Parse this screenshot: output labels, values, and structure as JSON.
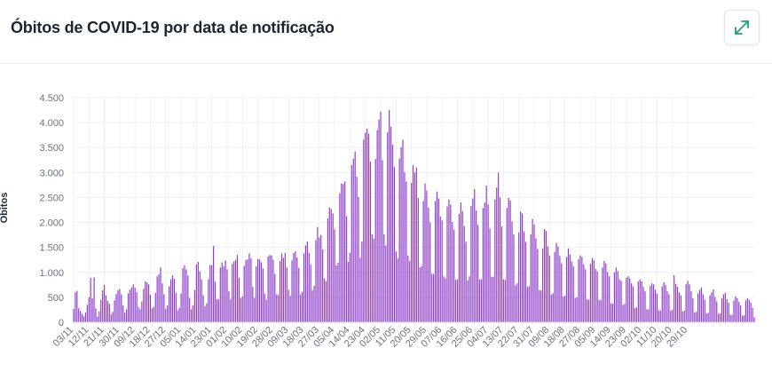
{
  "header": {
    "title": "Óbitos de COVID-19 por data de notificação"
  },
  "colors": {
    "bar": "#8e3fc9",
    "expand_icon": "#1f9e7a",
    "grid": "#eef0f3"
  },
  "chart_data": {
    "type": "bar",
    "title": "Óbitos de COVID-19 por data de notificação",
    "xlabel": "",
    "ylabel": "Óbitos",
    "ylim": [
      0,
      4500
    ],
    "yticks": [
      0,
      500,
      1000,
      1500,
      2000,
      2500,
      3000,
      3500,
      4000,
      4500
    ],
    "ytick_labels": [
      "0",
      "500",
      "1.000",
      "1.500",
      "2.000",
      "2.500",
      "3.000",
      "3.500",
      "4.000",
      "4.500"
    ],
    "xtick_labels": [
      "03/11",
      "12/11",
      "21/11",
      "30/11",
      "09/12",
      "18/12",
      "27/12",
      "05/01",
      "14/01",
      "23/01",
      "01/02",
      "10/02",
      "19/02",
      "28/02",
      "09/03",
      "18/03",
      "27/03",
      "05/04",
      "14/04",
      "23/04",
      "02/05",
      "11/05",
      "20/05",
      "29/05",
      "07/06",
      "16/06",
      "25/06",
      "04/07",
      "13/07",
      "22/07",
      "31/07",
      "09/08",
      "18/08",
      "27/08",
      "05/09",
      "14/09",
      "23/09",
      "02/10",
      "11/10",
      "20/10",
      "29/10"
    ],
    "grid": true,
    "series": [
      {
        "name": "Óbitos",
        "start_date": "03/11",
        "values": [
          270,
          600,
          630,
          280,
          230,
          170,
          120,
          200,
          350,
          500,
          890,
          480,
          900,
          280,
          120,
          220,
          450,
          640,
          750,
          540,
          430,
          370,
          160,
          210,
          440,
          570,
          640,
          670,
          560,
          340,
          190,
          260,
          580,
          650,
          700,
          760,
          690,
          600,
          300,
          260,
          420,
          670,
          820,
          800,
          760,
          550,
          280,
          310,
          590,
          920,
          960,
          1100,
          780,
          560,
          270,
          340,
          720,
          860,
          940,
          870,
          590,
          240,
          290,
          580,
          1080,
          1140,
          1060,
          940,
          490,
          260,
          340,
          650,
          1160,
          1210,
          1020,
          860,
          540,
          320,
          380,
          860,
          1150,
          1140,
          1530,
          810,
          460,
          460,
          1100,
          1200,
          1120,
          1240,
          1060,
          620,
          460,
          1170,
          1220,
          1250,
          1350,
          890,
          490,
          520,
          1130,
          1250,
          1260,
          1380,
          1280,
          710,
          490,
          1120,
          1270,
          1260,
          1200,
          1080,
          580,
          450,
          1320,
          1350,
          1340,
          1250,
          970,
          560,
          550,
          1230,
          1380,
          1290,
          1390,
          1100,
          650,
          530,
          1240,
          1390,
          1420,
          1300,
          1090,
          560,
          610,
          1380,
          1540,
          1620,
          1390,
          1160,
          640,
          730,
          1640,
          1910,
          1700,
          1750,
          1460,
          880,
          820,
          2080,
          2300,
          2270,
          2180,
          1860,
          1140,
          1190,
          2580,
          2780,
          2770,
          2820,
          2130,
          1210,
          1390,
          3150,
          3280,
          3420,
          2920,
          2510,
          1290,
          1620,
          3660,
          3800,
          3880,
          3780,
          3220,
          1760,
          1680,
          3270,
          3850,
          4060,
          4220,
          3250,
          1760,
          1540,
          3810,
          4250,
          3920,
          3560,
          3110,
          1420,
          1280,
          3280,
          3510,
          3660,
          3010,
          2820,
          1340,
          1230,
          2790,
          3150,
          3000,
          3100,
          2490,
          1100,
          1130,
          2430,
          2780,
          2640,
          2300,
          2000,
          970,
          970,
          2430,
          2620,
          2480,
          2120,
          2040,
          920,
          880,
          2320,
          2460,
          2360,
          2010,
          1860,
          850,
          860,
          2170,
          2400,
          2230,
          1930,
          1610,
          840,
          920,
          2330,
          2480,
          2670,
          2240,
          1950,
          860,
          860,
          2290,
          2400,
          2740,
          2360,
          1880,
          910,
          910,
          2460,
          2700,
          3000,
          2500,
          1920,
          860,
          850,
          2290,
          2490,
          2440,
          2020,
          1760,
          740,
          780,
          1800,
          2220,
          2180,
          1820,
          1610,
          710,
          720,
          1760,
          2070,
          1960,
          1680,
          1470,
          640,
          640,
          1480,
          1870,
          1830,
          1520,
          1340,
          560,
          580,
          1410,
          1590,
          1520,
          1330,
          1180,
          520,
          530,
          1310,
          1480,
          1360,
          1220,
          1120,
          490,
          500,
          1260,
          1340,
          1310,
          1160,
          1060,
          460,
          450,
          1170,
          1290,
          1250,
          1070,
          1020,
          450,
          440,
          1100,
          1230,
          1180,
          1010,
          920,
          380,
          370,
          1000,
          1100,
          1030,
          860,
          830,
          350,
          370,
          890,
          920,
          880,
          780,
          720,
          280,
          300,
          820,
          860,
          820,
          710,
          620,
          260,
          260,
          730,
          780,
          760,
          650,
          570,
          240,
          240,
          720,
          800,
          750,
          620,
          560,
          230,
          250,
          940,
          770,
          710,
          600,
          540,
          220,
          230,
          760,
          830,
          760,
          620,
          480,
          200,
          210,
          580,
          650,
          700,
          560,
          450,
          180,
          190,
          540,
          600,
          660,
          510,
          420,
          170,
          180,
          480,
          560,
          590,
          460,
          390,
          150,
          150,
          440,
          520,
          480,
          410,
          340,
          130,
          140,
          440,
          480,
          450,
          390,
          290,
          100
        ]
      }
    ]
  }
}
